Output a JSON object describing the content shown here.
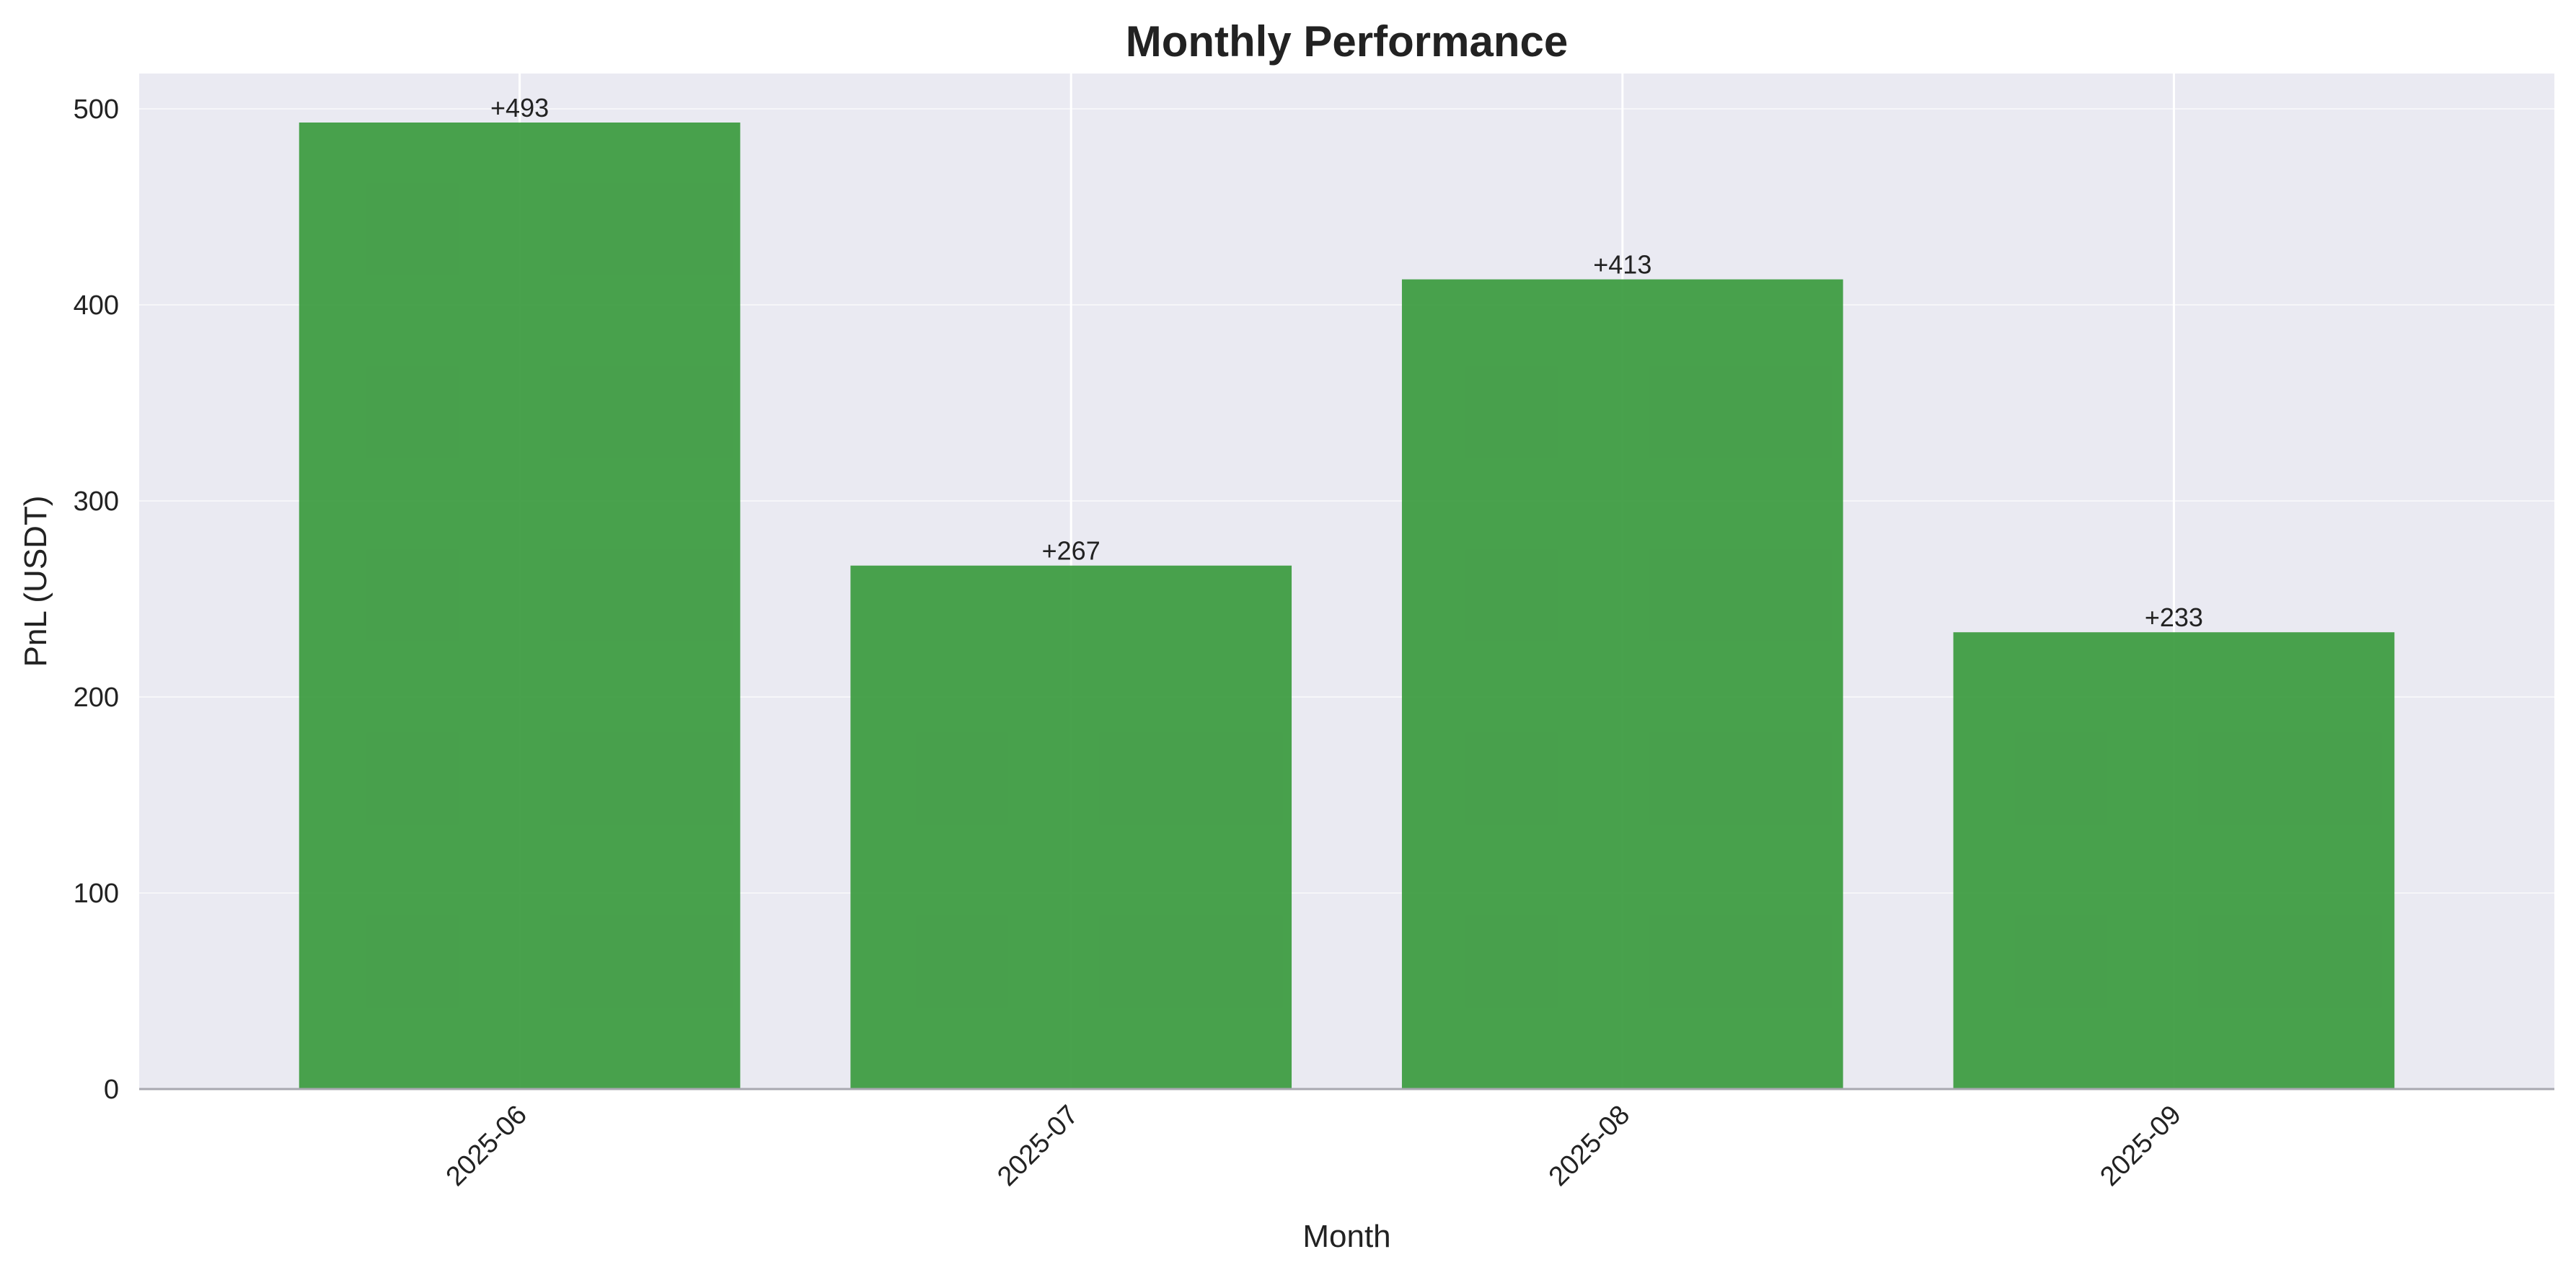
{
  "chart_data": {
    "type": "bar",
    "title": "Monthly Performance",
    "xlabel": "Month",
    "ylabel": "PnL (USDT)",
    "categories": [
      "2025-06",
      "2025-07",
      "2025-08",
      "2025-09"
    ],
    "values": [
      493,
      267,
      413,
      233
    ],
    "data_labels": [
      "+493",
      "+267",
      "+413",
      "+233"
    ],
    "ylim": [
      0,
      518
    ],
    "yticks": [
      0,
      100,
      200,
      300,
      400,
      500
    ],
    "grid": true,
    "bar_color": "#3a9a3e",
    "background_color": "#eaeaf2",
    "grid_color": "#ffffff"
  }
}
